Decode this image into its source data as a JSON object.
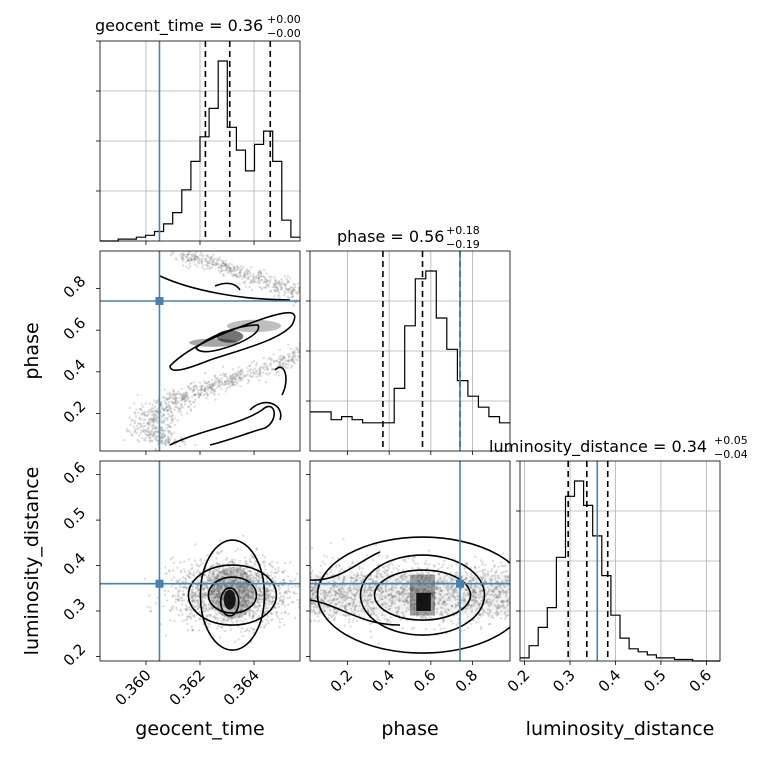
{
  "chart_data": {
    "type": "corner",
    "parameters": [
      "geocent_time",
      "phase",
      "luminosity_distance"
    ],
    "truths": {
      "geocent_time": 0.3605,
      "phase": 0.74,
      "luminosity_distance": 0.36
    },
    "colors": {
      "truth": "#4682b4",
      "hist": "#000000",
      "grid": "#b0b0b0",
      "scatter": "#808080"
    },
    "ranges": {
      "geocent_time": [
        0.3583,
        0.3657
      ],
      "phase": [
        0.02,
        0.98
      ],
      "luminosity_distance": [
        0.19,
        0.63
      ]
    },
    "ticks": {
      "geocent_time": [
        "0.360",
        "0.362",
        "0.364"
      ],
      "phase": [
        "0.2",
        "0.4",
        "0.6",
        "0.8"
      ],
      "luminosity_distance": [
        "0.2",
        "0.3",
        "0.4",
        "0.5",
        "0.6"
      ]
    },
    "titles": {
      "geocent_time": {
        "text": "geocent_time = 0.36",
        "sup": "+0.00",
        "sub": "−0.00"
      },
      "phase": {
        "text": "phase = 0.56",
        "sup": "+0.18",
        "sub": "−0.19"
      },
      "luminosity_distance": {
        "text": "luminosity_distance = 0.34",
        "sup": "+0.05",
        "sub": "−0.04"
      }
    },
    "quantiles": {
      "geocent_time": [
        0.3622,
        0.3631,
        0.3646
      ],
      "phase": [
        0.37,
        0.56,
        0.74
      ],
      "luminosity_distance": [
        0.296,
        0.337,
        0.383
      ]
    },
    "histograms": {
      "geocent_time": {
        "edges_start": 0.3583,
        "edges_end": 0.3657,
        "counts": [
          0,
          0,
          1,
          1,
          2,
          3,
          5,
          9,
          15,
          27,
          42,
          55,
          70,
          95,
          60,
          48,
          37,
          51,
          58,
          42,
          11,
          2
        ]
      },
      "phase": {
        "edges_start": 0.02,
        "edges_end": 0.98,
        "counts": [
          25,
          25,
          20,
          22,
          20,
          18,
          18,
          18,
          40,
          80,
          110,
          115,
          85,
          65,
          45,
          35,
          28,
          22,
          18
        ]
      },
      "luminosity_distance": {
        "edges_start": 0.19,
        "edges_end": 0.63,
        "counts": [
          2,
          10,
          22,
          35,
          68,
          108,
          118,
          102,
          82,
          56,
          30,
          15,
          8,
          6,
          4,
          2,
          2,
          1,
          1,
          0,
          0,
          0
        ]
      }
    },
    "xlabels": [
      "geocent_time",
      "phase",
      "luminosity_distance"
    ],
    "ylabels": [
      "phase",
      "luminosity_distance"
    ]
  }
}
